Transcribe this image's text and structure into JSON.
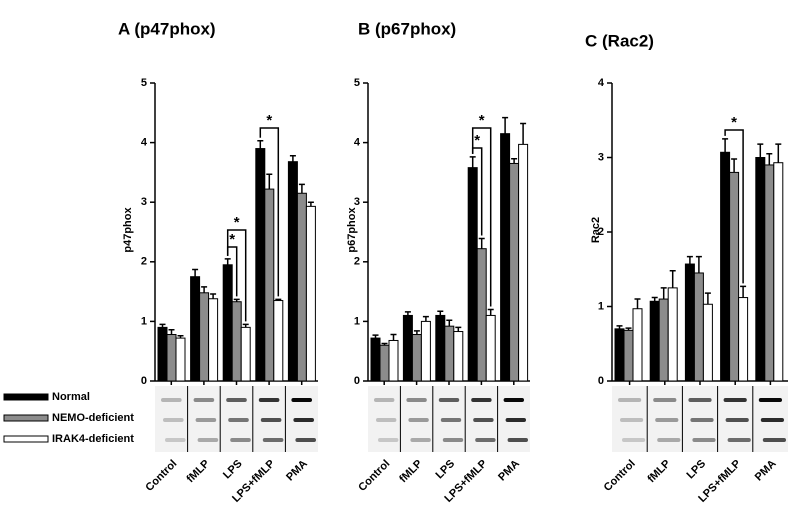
{
  "chart_data": [
    {
      "type": "bar",
      "title": "A (p47phox)",
      "ylabel": "p47phox",
      "categories": [
        "Control",
        "fMLP",
        "LPS",
        "LPS+fMLP",
        "PMA"
      ],
      "series": [
        {
          "name": "Normal",
          "color": "#000000",
          "values": [
            0.9,
            1.75,
            1.95,
            3.9,
            3.68
          ],
          "errors": [
            0.05,
            0.12,
            0.1,
            0.13,
            0.1
          ]
        },
        {
          "name": "NEMO-deficient",
          "color": "#8c8c8c",
          "values": [
            0.78,
            1.48,
            1.33,
            3.22,
            3.15
          ],
          "errors": [
            0.08,
            0.1,
            0.04,
            0.25,
            0.15
          ]
        },
        {
          "name": "IRAK4-deficient",
          "color": "#ffffff",
          "values": [
            0.72,
            1.38,
            0.9,
            1.35,
            2.93
          ],
          "errors": [
            0.04,
            0.08,
            0.05,
            0.02,
            0.07
          ]
        }
      ],
      "ylim": [
        0,
        5
      ],
      "yticks": [
        0,
        1,
        2,
        3,
        4,
        5
      ],
      "annotations": [
        "*",
        "*",
        "*"
      ]
    },
    {
      "type": "bar",
      "title": "B (p67phox)",
      "ylabel": "p67phox",
      "categories": [
        "Control",
        "fMLP",
        "LPS",
        "LPS+fMLP",
        "PMA"
      ],
      "series": [
        {
          "color": "#000000",
          "values": [
            0.72,
            1.1,
            1.1,
            3.58,
            4.15
          ],
          "errors": [
            0.05,
            0.06,
            0.07,
            0.18,
            0.27
          ]
        },
        {
          "color": "#8c8c8c",
          "values": [
            0.6,
            0.78,
            0.92,
            2.22,
            3.65
          ],
          "errors": [
            0.03,
            0.06,
            0.1,
            0.17,
            0.08
          ]
        },
        {
          "color": "#ffffff",
          "values": [
            0.68,
            1.0,
            0.83,
            1.1,
            3.97
          ],
          "errors": [
            0.1,
            0.08,
            0.07,
            0.1,
            0.35
          ]
        }
      ],
      "ylim": [
        0,
        5
      ],
      "yticks": [
        0,
        1,
        2,
        3,
        4,
        5
      ],
      "annotations": [
        "*",
        "*"
      ]
    },
    {
      "type": "bar",
      "title": "C (Rac2)",
      "ylabel": "Rac2",
      "categories": [
        "Control",
        "fMLP",
        "LPS",
        "LPS+fMLP",
        "PMA"
      ],
      "series": [
        {
          "color": "#000000",
          "values": [
            0.7,
            1.07,
            1.57,
            3.07,
            3.0
          ],
          "errors": [
            0.04,
            0.05,
            0.1,
            0.18,
            0.18
          ]
        },
        {
          "color": "#8c8c8c",
          "values": [
            0.68,
            1.1,
            1.45,
            2.8,
            2.9
          ],
          "errors": [
            0.03,
            0.15,
            0.22,
            0.18,
            0.15
          ]
        },
        {
          "color": "#ffffff",
          "values": [
            0.97,
            1.25,
            1.03,
            1.12,
            2.93
          ],
          "errors": [
            0.13,
            0.23,
            0.15,
            0.15,
            0.25
          ]
        }
      ],
      "ylim": [
        0,
        4
      ],
      "yticks": [
        0,
        1,
        2,
        3,
        4
      ],
      "annotations": [
        "*"
      ]
    }
  ]
}
